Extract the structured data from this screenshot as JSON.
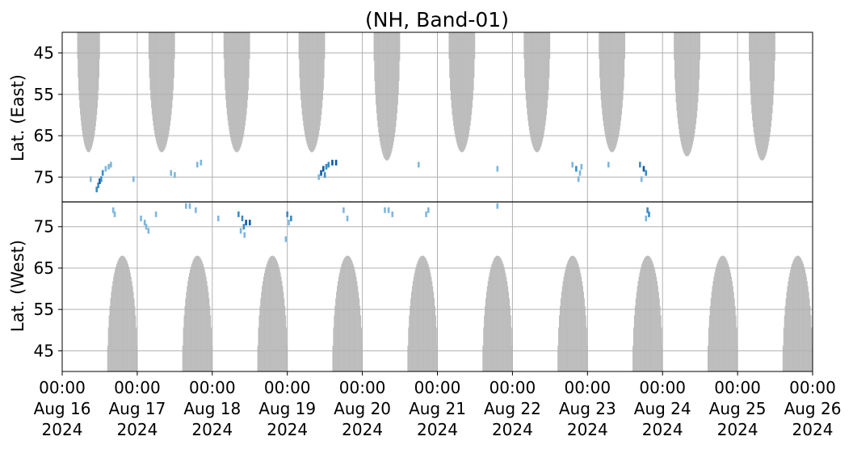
{
  "chart_data": {
    "type": "heatmap",
    "title": "(NH, Band-01)",
    "grid": true,
    "divider_line": true,
    "colors": {
      "night_shading": "#bdbdbd",
      "low": "#7eb6dc",
      "mid": "#3a8cc6",
      "high": "#0d59a4",
      "grid": "#b0b0b0",
      "axes": "#000000"
    },
    "x_ticks": [
      {
        "l1": "00:00",
        "l2": "Aug 16",
        "l3": "2024"
      },
      {
        "l1": "00:00",
        "l2": "Aug 17",
        "l3": "2024"
      },
      {
        "l1": "00:00",
        "l2": "Aug 18",
        "l3": "2024"
      },
      {
        "l1": "00:00",
        "l2": "Aug 19",
        "l3": "2024"
      },
      {
        "l1": "00:00",
        "l2": "Aug 20",
        "l3": "2024"
      },
      {
        "l1": "00:00",
        "l2": "Aug 21",
        "l3": "2024"
      },
      {
        "l1": "00:00",
        "l2": "Aug 22",
        "l3": "2024"
      },
      {
        "l1": "00:00",
        "l2": "Aug 23",
        "l3": "2024"
      },
      {
        "l1": "00:00",
        "l2": "Aug 24",
        "l3": "2024"
      },
      {
        "l1": "00:00",
        "l2": "Aug 25",
        "l3": "2024"
      },
      {
        "l1": "00:00",
        "l2": "Aug 26",
        "l3": "2024"
      }
    ],
    "xlim_days": [
      0,
      10
    ],
    "east": {
      "ylabel": "Lat. (East)",
      "ylim": [
        40,
        81
      ],
      "ticks": [
        45,
        55,
        65,
        75
      ],
      "tick_labels": [
        "45",
        "55",
        "65",
        "75"
      ],
      "night_regions": [
        {
          "start": 0.2,
          "end": 0.5,
          "min_lat": 69
        },
        {
          "start": 1.15,
          "end": 1.5,
          "min_lat": 69
        },
        {
          "start": 2.15,
          "end": 2.5,
          "min_lat": 69
        },
        {
          "start": 3.15,
          "end": 3.5,
          "min_lat": 69
        },
        {
          "start": 4.15,
          "end": 4.5,
          "min_lat": 71
        },
        {
          "start": 5.15,
          "end": 5.5,
          "min_lat": 69
        },
        {
          "start": 6.15,
          "end": 6.5,
          "min_lat": 69
        },
        {
          "start": 7.15,
          "end": 7.5,
          "min_lat": 69
        },
        {
          "start": 8.15,
          "end": 8.5,
          "min_lat": 70
        },
        {
          "start": 9.15,
          "end": 9.5,
          "min_lat": 71
        }
      ],
      "activity": [
        {
          "t": 0.48,
          "lat": 77,
          "level": 2
        },
        {
          "t": 0.5,
          "lat": 76,
          "level": 3
        },
        {
          "t": 0.52,
          "lat": 75.5,
          "level": 2
        },
        {
          "t": 0.46,
          "lat": 78,
          "level": 2
        },
        {
          "t": 0.54,
          "lat": 74,
          "level": 2
        },
        {
          "t": 0.58,
          "lat": 73,
          "level": 1
        },
        {
          "t": 0.62,
          "lat": 72.5,
          "level": 1
        },
        {
          "t": 0.65,
          "lat": 72,
          "level": 1
        },
        {
          "t": 0.38,
          "lat": 75.5,
          "level": 1
        },
        {
          "t": 0.95,
          "lat": 75.5,
          "level": 1
        },
        {
          "t": 1.5,
          "lat": 74.5,
          "level": 1
        },
        {
          "t": 1.45,
          "lat": 74,
          "level": 1
        },
        {
          "t": 1.8,
          "lat": 72,
          "level": 1
        },
        {
          "t": 1.85,
          "lat": 71.5,
          "level": 1
        },
        {
          "t": 3.45,
          "lat": 74,
          "level": 3
        },
        {
          "t": 3.48,
          "lat": 73,
          "level": 3
        },
        {
          "t": 3.5,
          "lat": 74.5,
          "level": 2
        },
        {
          "t": 3.52,
          "lat": 72.5,
          "level": 2
        },
        {
          "t": 3.42,
          "lat": 75,
          "level": 1
        },
        {
          "t": 3.55,
          "lat": 72,
          "level": 2
        },
        {
          "t": 3.6,
          "lat": 71.5,
          "level": 3
        },
        {
          "t": 3.65,
          "lat": 71.5,
          "level": 3
        },
        {
          "t": 4.75,
          "lat": 72,
          "level": 1
        },
        {
          "t": 5.8,
          "lat": 73,
          "level": 1
        },
        {
          "t": 6.8,
          "lat": 72,
          "level": 1
        },
        {
          "t": 6.85,
          "lat": 73,
          "level": 2
        },
        {
          "t": 6.9,
          "lat": 74,
          "level": 1
        },
        {
          "t": 6.88,
          "lat": 75.5,
          "level": 1
        },
        {
          "t": 6.92,
          "lat": 72.5,
          "level": 1
        },
        {
          "t": 7.28,
          "lat": 72,
          "level": 1
        },
        {
          "t": 7.7,
          "lat": 72,
          "level": 2
        },
        {
          "t": 7.75,
          "lat": 73,
          "level": 3
        },
        {
          "t": 7.78,
          "lat": 74,
          "level": 2
        },
        {
          "t": 7.72,
          "lat": 75.5,
          "level": 1
        }
      ]
    },
    "west": {
      "ylabel": "Lat. (West)",
      "ylim": [
        40,
        81
      ],
      "ticks": [
        45,
        55,
        65,
        75
      ],
      "tick_labels": [
        "45",
        "55",
        "65",
        "75"
      ],
      "night_regions": [
        {
          "start": 0.6,
          "end": 1.0,
          "min_lat": 68
        },
        {
          "start": 1.6,
          "end": 2.0,
          "min_lat": 68
        },
        {
          "start": 2.6,
          "end": 3.0,
          "min_lat": 68
        },
        {
          "start": 3.6,
          "end": 4.0,
          "min_lat": 68
        },
        {
          "start": 4.6,
          "end": 5.0,
          "min_lat": 68
        },
        {
          "start": 5.6,
          "end": 6.0,
          "min_lat": 68
        },
        {
          "start": 6.6,
          "end": 7.0,
          "min_lat": 68
        },
        {
          "start": 7.6,
          "end": 8.0,
          "min_lat": 68
        },
        {
          "start": 8.6,
          "end": 9.0,
          "min_lat": 68
        },
        {
          "start": 9.6,
          "end": 10.0,
          "min_lat": 68
        }
      ],
      "activity": [
        {
          "t": 0.68,
          "lat": 79,
          "level": 1
        },
        {
          "t": 0.7,
          "lat": 78,
          "level": 1
        },
        {
          "t": 1.05,
          "lat": 77,
          "level": 1
        },
        {
          "t": 1.1,
          "lat": 76,
          "level": 1
        },
        {
          "t": 1.12,
          "lat": 75,
          "level": 1
        },
        {
          "t": 1.15,
          "lat": 74,
          "level": 1
        },
        {
          "t": 1.25,
          "lat": 78,
          "level": 1
        },
        {
          "t": 1.65,
          "lat": 80,
          "level": 1
        },
        {
          "t": 1.7,
          "lat": 80,
          "level": 1
        },
        {
          "t": 1.78,
          "lat": 79,
          "level": 1
        },
        {
          "t": 2.08,
          "lat": 77,
          "level": 1
        },
        {
          "t": 2.35,
          "lat": 78,
          "level": 2
        },
        {
          "t": 2.4,
          "lat": 77,
          "level": 2
        },
        {
          "t": 2.45,
          "lat": 76,
          "level": 3
        },
        {
          "t": 2.42,
          "lat": 75,
          "level": 2
        },
        {
          "t": 2.5,
          "lat": 76,
          "level": 3
        },
        {
          "t": 2.38,
          "lat": 74,
          "level": 1
        },
        {
          "t": 2.43,
          "lat": 73,
          "level": 1
        },
        {
          "t": 2.98,
          "lat": 72,
          "level": 1
        },
        {
          "t": 3.0,
          "lat": 78,
          "level": 2
        },
        {
          "t": 3.05,
          "lat": 77,
          "level": 2
        },
        {
          "t": 3.02,
          "lat": 76,
          "level": 1
        },
        {
          "t": 3.75,
          "lat": 79,
          "level": 1
        },
        {
          "t": 3.8,
          "lat": 77,
          "level": 1
        },
        {
          "t": 4.3,
          "lat": 79,
          "level": 1
        },
        {
          "t": 4.35,
          "lat": 79,
          "level": 1
        },
        {
          "t": 4.4,
          "lat": 78,
          "level": 1
        },
        {
          "t": 4.85,
          "lat": 78,
          "level": 1
        },
        {
          "t": 4.88,
          "lat": 79,
          "level": 1
        },
        {
          "t": 5.8,
          "lat": 80,
          "level": 1
        },
        {
          "t": 7.8,
          "lat": 79,
          "level": 2
        },
        {
          "t": 7.82,
          "lat": 78,
          "level": 2
        },
        {
          "t": 7.78,
          "lat": 77,
          "level": 1
        }
      ]
    }
  }
}
